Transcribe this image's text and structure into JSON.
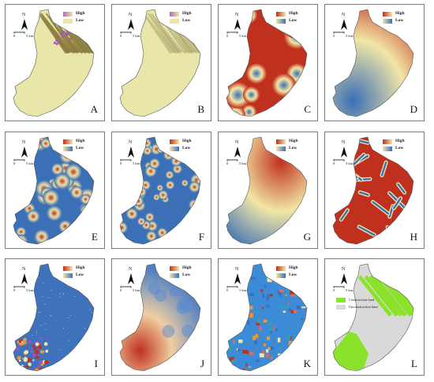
{
  "legend_text": {
    "high": "High",
    "low": "Low"
  },
  "north_label": "N",
  "scale": {
    "zero": "0",
    "distance": "5 km"
  },
  "panels": [
    {
      "letter": "A",
      "style": "terrain"
    },
    {
      "letter": "B",
      "style": "terrain-light"
    },
    {
      "letter": "C",
      "style": "buffer"
    },
    {
      "letter": "D",
      "style": "gradient"
    },
    {
      "letter": "E",
      "style": "kernel"
    },
    {
      "letter": "F",
      "style": "kernel-small"
    },
    {
      "letter": "G",
      "style": "gradient-2"
    },
    {
      "letter": "H",
      "style": "network"
    },
    {
      "letter": "I",
      "style": "sparse"
    },
    {
      "letter": "J",
      "style": "blob"
    },
    {
      "letter": "K",
      "style": "mixed"
    },
    {
      "letter": "L",
      "style": "binary"
    }
  ],
  "panel_l_legend": [
    "Construction land",
    "Unconstruction land"
  ],
  "colors": {
    "high": "#c0301e",
    "mid": "#f2e6a6",
    "low": "#3b6fb6",
    "terrain_light": "#e8e7a9",
    "terrain_dark": "#8a7a3c",
    "green": "#8be22b",
    "grey": "#d9d9d9"
  }
}
